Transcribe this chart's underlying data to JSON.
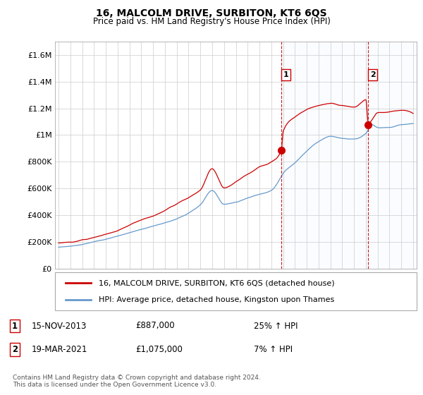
{
  "title": "16, MALCOLM DRIVE, SURBITON, KT6 6QS",
  "subtitle": "Price paid vs. HM Land Registry's House Price Index (HPI)",
  "legend_line1": "16, MALCOLM DRIVE, SURBITON, KT6 6QS (detached house)",
  "legend_line2": "HPI: Average price, detached house, Kingston upon Thames",
  "footnote": "Contains HM Land Registry data © Crown copyright and database right 2024.\nThis data is licensed under the Open Government Licence v3.0.",
  "sale1_label": "1",
  "sale1_date": "15-NOV-2013",
  "sale1_price": "£887,000",
  "sale1_hpi": "25% ↑ HPI",
  "sale1_year": 2013.87,
  "sale1_value": 887000,
  "sale2_label": "2",
  "sale2_date": "19-MAR-2021",
  "sale2_price": "£1,075,000",
  "sale2_hpi": "7% ↑ HPI",
  "sale2_year": 2021.21,
  "sale2_value": 1075000,
  "red_color": "#cc0000",
  "blue_color": "#6699cc",
  "shade_color": "#ddeeff",
  "dashed_color": "#cc0000",
  "ylim": [
    0,
    1700000
  ],
  "xlim": [
    1994.7,
    2025.3
  ],
  "yticks": [
    0,
    200000,
    400000,
    600000,
    800000,
    1000000,
    1200000,
    1400000,
    1600000
  ],
  "ytick_labels": [
    "£0",
    "£200K",
    "£400K",
    "£600K",
    "£800K",
    "£1M",
    "£1.2M",
    "£1.4M",
    "£1.6M"
  ],
  "xticks": [
    1995,
    1996,
    1997,
    1998,
    1999,
    2000,
    2001,
    2002,
    2003,
    2004,
    2005,
    2006,
    2007,
    2008,
    2009,
    2010,
    2011,
    2012,
    2013,
    2014,
    2015,
    2016,
    2017,
    2018,
    2019,
    2020,
    2021,
    2022,
    2023,
    2024,
    2025
  ]
}
